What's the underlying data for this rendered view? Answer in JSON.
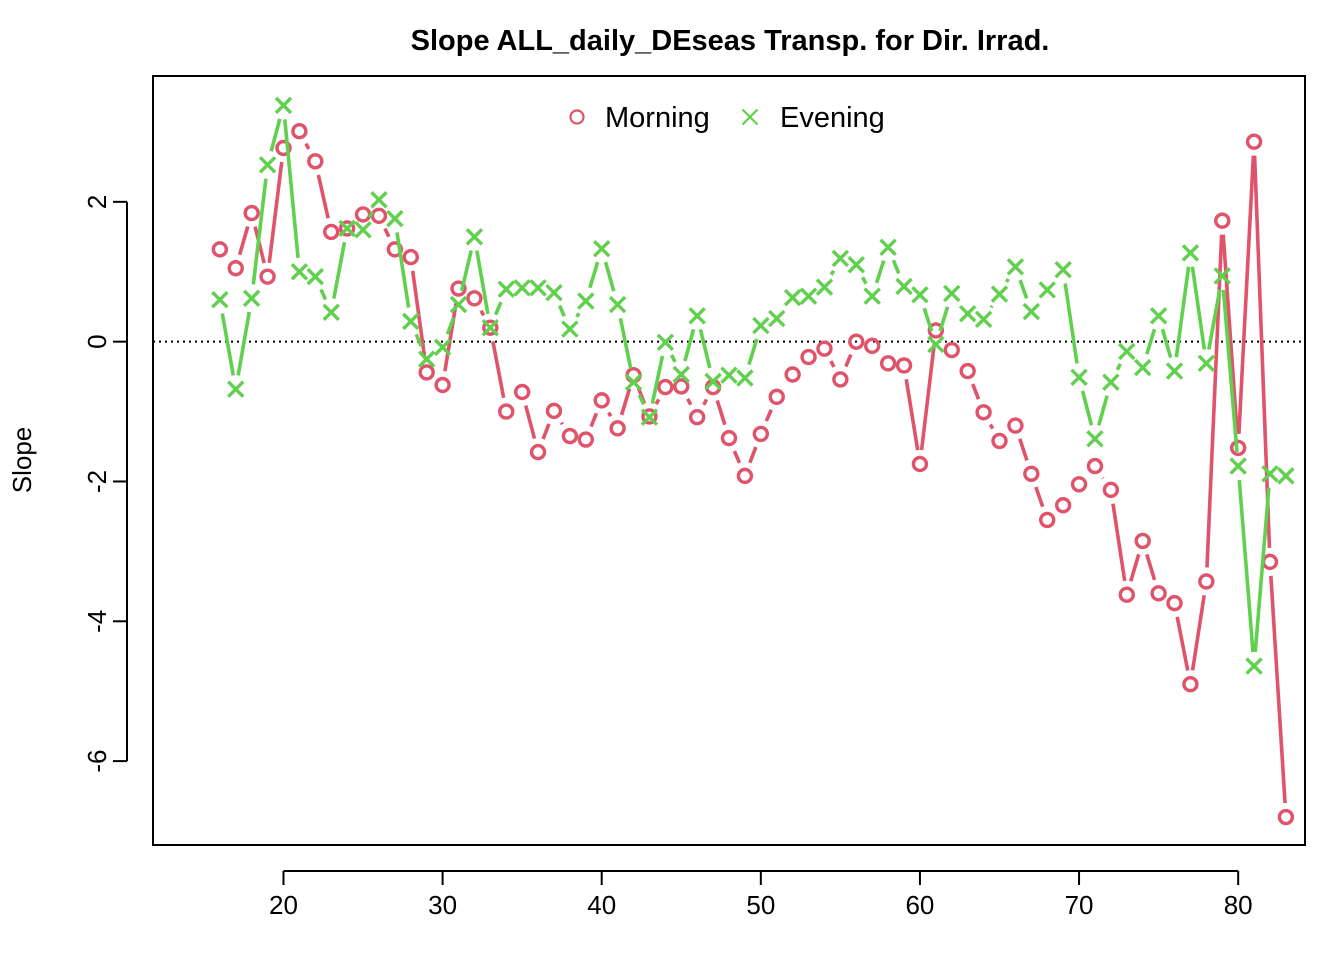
{
  "chart_data": {
    "type": "line",
    "title": "Slope ALL_daily_DEseas Transp. for Dir. Irrad.",
    "xlabel": "",
    "ylabel": "Slope",
    "xlim": [
      11.8,
      84.2
    ],
    "ylim": [
      -7.2,
      3.8
    ],
    "xticks": [
      20,
      30,
      40,
      50,
      60,
      70,
      80
    ],
    "yticks": [
      -6,
      -4,
      -2,
      0,
      2
    ],
    "reference_line": 0,
    "legend_position": "top",
    "x": [
      16,
      17,
      18,
      19,
      20,
      21,
      22,
      23,
      24,
      25,
      26,
      27,
      28,
      29,
      30,
      31,
      32,
      33,
      34,
      35,
      36,
      37,
      38,
      39,
      40,
      41,
      42,
      43,
      44,
      45,
      46,
      47,
      48,
      49,
      50,
      51,
      52,
      53,
      54,
      55,
      56,
      57,
      58,
      59,
      60,
      61,
      62,
      63,
      64,
      65,
      66,
      67,
      68,
      69,
      70,
      71,
      72,
      73,
      74,
      75,
      76,
      77,
      78,
      79,
      80,
      81,
      82,
      83
    ],
    "series": [
      {
        "name": "Morning",
        "color": "#DF536B",
        "marker": "circle",
        "values": [
          1.32,
          1.05,
          1.84,
          0.93,
          2.77,
          3.01,
          2.58,
          1.57,
          1.62,
          1.82,
          1.8,
          1.32,
          1.21,
          -0.44,
          -0.62,
          0.76,
          0.62,
          0.2,
          -1.0,
          -0.72,
          -1.58,
          -0.99,
          -1.35,
          -1.4,
          -0.84,
          -1.24,
          -0.48,
          -1.07,
          -0.65,
          -0.64,
          -1.08,
          -0.65,
          -1.38,
          -1.92,
          -1.32,
          -0.79,
          -0.47,
          -0.22,
          -0.1,
          -0.54,
          0.0,
          -0.06,
          -0.31,
          -0.34,
          -1.75,
          0.16,
          -0.12,
          -0.42,
          -1.01,
          -1.42,
          -1.2,
          -1.89,
          -2.55,
          -2.34,
          -2.04,
          -1.78,
          -2.12,
          -3.62,
          -2.85,
          -3.6,
          -3.74,
          -4.9,
          -3.43,
          1.73,
          -1.52,
          2.86,
          -3.15,
          -6.8
        ]
      },
      {
        "name": "Evening",
        "color": "#61D04F",
        "marker": "cross",
        "values": [
          0.6,
          -0.68,
          0.62,
          2.53,
          3.38,
          1.0,
          0.93,
          0.42,
          1.62,
          1.6,
          2.03,
          1.76,
          0.29,
          -0.25,
          -0.08,
          0.53,
          1.5,
          0.2,
          0.75,
          0.77,
          0.77,
          0.7,
          0.18,
          0.58,
          1.33,
          0.53,
          -0.58,
          -1.08,
          -0.01,
          -0.47,
          0.37,
          -0.57,
          -0.48,
          -0.52,
          0.23,
          0.33,
          0.63,
          0.65,
          0.78,
          1.19,
          1.1,
          0.65,
          1.35,
          0.79,
          0.67,
          -0.04,
          0.69,
          0.4,
          0.32,
          0.68,
          1.07,
          0.43,
          0.74,
          1.03,
          -0.51,
          -1.39,
          -0.58,
          -0.14,
          -0.37,
          0.37,
          -0.42,
          1.27,
          -0.31,
          0.94,
          -1.78,
          -4.64,
          -1.89,
          -1.92
        ]
      }
    ]
  }
}
